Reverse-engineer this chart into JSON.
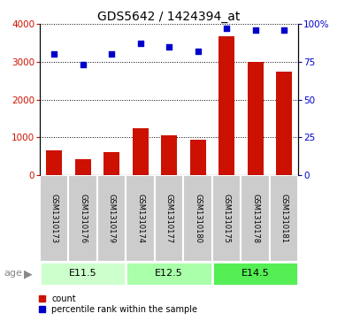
{
  "title": "GDS5642 / 1424394_at",
  "samples": [
    "GSM1310173",
    "GSM1310176",
    "GSM1310179",
    "GSM1310174",
    "GSM1310177",
    "GSM1310180",
    "GSM1310175",
    "GSM1310178",
    "GSM1310181"
  ],
  "counts": [
    650,
    420,
    600,
    1230,
    1060,
    930,
    3680,
    2990,
    2750
  ],
  "percentiles": [
    80,
    73,
    80,
    87,
    85,
    82,
    97,
    96,
    96
  ],
  "ylim_left": [
    0,
    4000
  ],
  "ylim_right": [
    0,
    100
  ],
  "yticks_left": [
    0,
    1000,
    2000,
    3000,
    4000
  ],
  "yticks_right": [
    0,
    25,
    50,
    75,
    100
  ],
  "bar_color": "#cc1100",
  "dot_color": "#0000cc",
  "age_groups": [
    {
      "label": "E11.5",
      "start": 0,
      "end": 3,
      "color": "#ccffcc"
    },
    {
      "label": "E12.5",
      "start": 3,
      "end": 6,
      "color": "#aaffaa"
    },
    {
      "label": "E14.5",
      "start": 6,
      "end": 9,
      "color": "#55ee55"
    }
  ],
  "age_label": "age",
  "sample_bg_color": "#cccccc",
  "legend_count_label": "count",
  "legend_pct_label": "percentile rank within the sample",
  "title_fontsize": 10,
  "tick_fontsize": 7.5,
  "sample_fontsize": 6,
  "age_fontsize": 8,
  "legend_fontsize": 7
}
